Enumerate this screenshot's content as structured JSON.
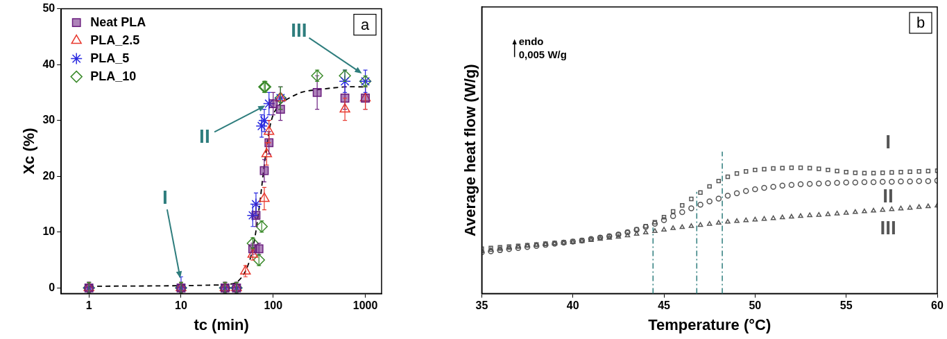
{
  "chart_data": [
    {
      "type": "scatter",
      "title": "a",
      "x_label": "tc (min)",
      "y_label": "Xc (%)",
      "log": "x",
      "xlim": [
        0.5,
        1500
      ],
      "xticks": [
        1,
        10,
        100,
        1000
      ],
      "ylim": [
        -1,
        50
      ],
      "yticks": [
        0,
        10,
        20,
        30,
        40,
        50
      ],
      "grid": false,
      "legend": "upper left",
      "series": [
        {
          "name": "Neat PLA",
          "color": "#6b1f7f",
          "marker": "square",
          "x": [
            1,
            10,
            30,
            40,
            60,
            65,
            70,
            80,
            90,
            100,
            120,
            300,
            600,
            1000
          ],
          "values": [
            0,
            0,
            0,
            0,
            7,
            13,
            7,
            21,
            26,
            33,
            32,
            35,
            34,
            34
          ],
          "errors": [
            1,
            1,
            1,
            1,
            1,
            2,
            1,
            2,
            2,
            2,
            2,
            3,
            2,
            2
          ]
        },
        {
          "name": "PLA_2.5",
          "color": "#e8382e",
          "marker": "triangle",
          "x": [
            1,
            10,
            30,
            40,
            50,
            60,
            80,
            85,
            90,
            120,
            600,
            1000
          ],
          "values": [
            0,
            0,
            0,
            0,
            3,
            6,
            16,
            24,
            28,
            34,
            32,
            34
          ],
          "errors": [
            1,
            1,
            1,
            1,
            1,
            1,
            2,
            2,
            2,
            2,
            2,
            2
          ]
        },
        {
          "name": "PLA_5",
          "color": "#2a2ae0",
          "marker": "star",
          "x": [
            1,
            10,
            30,
            40,
            60,
            65,
            75,
            80,
            90,
            120,
            600,
            1000
          ],
          "values": [
            0,
            0,
            0,
            0,
            13,
            15,
            29,
            30,
            33,
            34,
            37,
            37
          ],
          "errors": [
            1,
            2,
            1,
            1,
            2,
            2,
            2,
            2,
            2,
            2,
            2,
            2
          ]
        },
        {
          "name": "PLA_10",
          "color": "#3a8a2a",
          "marker": "diamond",
          "x": [
            1,
            10,
            30,
            40,
            60,
            70,
            75,
            80,
            82,
            120,
            300,
            600,
            1000
          ],
          "values": [
            0,
            0,
            0,
            0,
            8,
            5,
            11,
            36,
            36,
            34,
            38,
            38,
            37
          ],
          "errors": [
            1,
            1,
            1,
            1,
            1,
            1,
            1,
            1,
            1,
            2,
            1,
            1,
            1
          ]
        },
        {
          "type": "line",
          "color": "#000000",
          "marker": "none",
          "line_style": "dashed",
          "x": [
            1,
            10,
            20,
            30,
            40,
            50,
            60,
            70,
            80,
            90,
            100,
            120,
            200,
            300,
            600,
            1000
          ],
          "values": [
            0.3,
            0.4,
            0.5,
            0.6,
            1,
            3,
            7,
            14,
            22,
            28,
            31,
            33,
            35,
            35.5,
            36,
            36
          ]
        }
      ],
      "annotations": [
        {
          "text": "I",
          "x": 6.7,
          "y": 16,
          "arrow_to": [
            10,
            1
          ]
        },
        {
          "text": "II",
          "x": 18,
          "y": 27,
          "arrow_to": [
            90,
            33
          ]
        },
        {
          "text": "III",
          "x": 190,
          "y": 46,
          "arrow_to": [
            1000,
            38
          ]
        }
      ]
    },
    {
      "type": "scatter",
      "title": "b",
      "x_label": "Temperature (°C)",
      "y_label": "Average heat flow (W/g)",
      "xlim": [
        35,
        60
      ],
      "xticks": [
        35,
        40,
        45,
        50,
        55,
        60
      ],
      "ylim": [
        0,
        0.08
      ],
      "grid": false,
      "tick_labels": "x",
      "x": [
        35,
        35.5,
        36,
        36.5,
        37,
        37.5,
        38,
        38.5,
        39,
        39.5,
        40,
        40.5,
        41,
        41.5,
        42,
        42.5,
        43,
        43.5,
        44,
        44.5,
        45,
        45.5,
        46,
        46.5,
        47,
        47.5,
        48,
        48.5,
        49,
        49.5,
        50,
        50.5,
        51,
        51.5,
        52,
        52.5,
        53,
        53.5,
        54,
        54.5,
        55,
        55.5,
        56,
        56.5,
        57,
        57.5,
        58,
        58.5,
        59,
        59.5,
        60
      ],
      "series": [
        {
          "color": "#555555",
          "marker": "square",
          "values": [
            0.0125,
            0.0127,
            0.0129,
            0.0131,
            0.0133,
            0.0135,
            0.0137,
            0.0139,
            0.0141,
            0.0143,
            0.0146,
            0.0149,
            0.0152,
            0.0156,
            0.016,
            0.0165,
            0.0171,
            0.0179,
            0.0188,
            0.0199,
            0.0213,
            0.0229,
            0.0246,
            0.0264,
            0.0282,
            0.0299,
            0.0314,
            0.0326,
            0.0335,
            0.0341,
            0.0345,
            0.0347,
            0.0349,
            0.035,
            0.0351,
            0.0351,
            0.035,
            0.0348,
            0.0345,
            0.0342,
            0.0339,
            0.0337,
            0.0336,
            0.0336,
            0.0337,
            0.0338,
            0.0339,
            0.034,
            0.0341,
            0.0342,
            0.0343
          ]
        },
        {
          "color": "#555555",
          "marker": "circle",
          "values": [
            0.0115,
            0.0118,
            0.0121,
            0.0124,
            0.0127,
            0.013,
            0.0133,
            0.0136,
            0.0139,
            0.0142,
            0.0145,
            0.0148,
            0.0152,
            0.0156,
            0.016,
            0.0165,
            0.0171,
            0.0178,
            0.0186,
            0.0195,
            0.0205,
            0.0216,
            0.0227,
            0.0238,
            0.0248,
            0.0257,
            0.0265,
            0.0273,
            0.028,
            0.0286,
            0.0291,
            0.0295,
            0.0298,
            0.0301,
            0.0303,
            0.0305,
            0.0306,
            0.0307,
            0.0308,
            0.0309,
            0.031,
            0.031,
            0.0311,
            0.0311,
            0.0312,
            0.0312,
            0.0313,
            0.0313,
            0.0314,
            0.0314,
            0.0315
          ]
        },
        {
          "color": "#555555",
          "marker": "triangle",
          "values": [
            0.0118,
            0.0121,
            0.0124,
            0.0127,
            0.013,
            0.0133,
            0.0135,
            0.0137,
            0.0139,
            0.0141,
            0.0143,
            0.0146,
            0.0149,
            0.0152,
            0.0155,
            0.0158,
            0.0162,
            0.0166,
            0.017,
            0.0174,
            0.0178,
            0.0182,
            0.0185,
            0.0188,
            0.0191,
            0.0194,
            0.0197,
            0.02,
            0.0202,
            0.0204,
            0.0206,
            0.0208,
            0.021,
            0.0212,
            0.0214,
            0.0216,
            0.0218,
            0.0219,
            0.0221,
            0.0223,
            0.0225,
            0.0227,
            0.0229,
            0.0231,
            0.0233,
            0.0235,
            0.0237,
            0.0239,
            0.0241,
            0.0243,
            0.0245
          ]
        }
      ],
      "vlines": [
        {
          "x": 44.4,
          "y": 0.0184
        },
        {
          "x": 46.8,
          "y": 0.0284
        },
        {
          "x": 48.2,
          "y": 0.0396
        }
      ],
      "scale_bar": {
        "x": 36.8,
        "y": 0.066,
        "length": 0.005,
        "labels": [
          "endo",
          "0,005 W/g"
        ]
      },
      "annotations": [
        {
          "text": "I",
          "x": 57.3,
          "y": 0.042
        },
        {
          "text": "II",
          "x": 57.3,
          "y": 0.027
        },
        {
          "text": "III",
          "x": 57.3,
          "y": 0.018
        }
      ]
    }
  ]
}
